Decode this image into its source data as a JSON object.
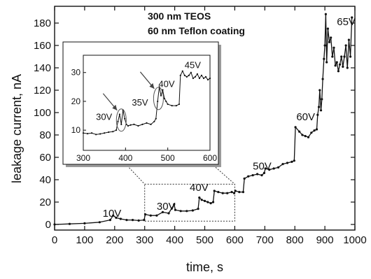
{
  "chart_data": [
    {
      "id": "main",
      "type": "line",
      "xlabel": "time, s",
      "ylabel": "leakage current, nA",
      "xlim": [
        0,
        1000
      ],
      "ylim": [
        -5,
        195
      ],
      "xticks": [
        0,
        100,
        200,
        300,
        400,
        500,
        600,
        700,
        800,
        900,
        1000
      ],
      "yticks": [
        0,
        20,
        40,
        60,
        80,
        100,
        120,
        140,
        160,
        180
      ],
      "annotations": [
        {
          "text": "300 nm TEOS",
          "x": 310,
          "y": 183
        },
        {
          "text": "60 nm Teflon coating",
          "x": 310,
          "y": 170
        }
      ],
      "voltage_labels": [
        {
          "text": "10V",
          "x": 160,
          "y": 7
        },
        {
          "text": "30V",
          "x": 340,
          "y": 13
        },
        {
          "text": "40V",
          "x": 450,
          "y": 30
        },
        {
          "text": "50V",
          "x": 660,
          "y": 49
        },
        {
          "text": "60V",
          "x": 805,
          "y": 93
        },
        {
          "text": "65V",
          "x": 940,
          "y": 178
        }
      ],
      "series": [
        {
          "x": [
            0,
            50,
            100,
            150,
            185,
            195,
            205,
            220,
            240,
            260,
            280,
            298,
            302,
            320,
            340,
            360,
            380,
            398,
            402,
            420,
            440,
            460,
            478,
            482,
            490,
            500,
            510,
            520,
            528,
            532,
            545,
            560,
            575,
            590,
            598,
            602,
            615,
            628,
            632,
            645,
            660,
            675,
            690,
            698,
            702,
            715,
            730,
            745,
            760,
            775,
            790,
            798,
            802,
            815,
            825,
            835,
            845,
            855,
            865,
            873,
            876,
            880,
            883,
            887,
            890,
            893,
            897,
            900,
            903,
            906,
            910,
            915,
            920,
            925,
            930,
            935,
            940,
            945,
            950,
            955,
            960,
            965,
            970,
            975,
            980,
            985,
            990
          ],
          "y": [
            0,
            0.5,
            1,
            2,
            4,
            8,
            6,
            5,
            4,
            4,
            3.5,
            4,
            9,
            8,
            8,
            11,
            10,
            18,
            13,
            12,
            12,
            12.5,
            14,
            24,
            22,
            21,
            20,
            19,
            20,
            30,
            29,
            28,
            28,
            29,
            28,
            30,
            29,
            29,
            41,
            43,
            44,
            45,
            44,
            46,
            50,
            49,
            50,
            51,
            54,
            55,
            56,
            57,
            87,
            83,
            80,
            79,
            78,
            82,
            84,
            85,
            98,
            105,
            120,
            102,
            112,
            130,
            148,
            160,
            188,
            145,
            175,
            163,
            167,
            150,
            158,
            142,
            145,
            137,
            143,
            150,
            141,
            150,
            160,
            140,
            165,
            150,
            185
          ]
        }
      ]
    },
    {
      "id": "inset",
      "type": "line",
      "xlim": [
        300,
        600
      ],
      "ylim": [
        3,
        36
      ],
      "xticks": [
        300,
        400,
        500,
        600
      ],
      "yticks": [
        10,
        20,
        30
      ],
      "voltage_labels": [
        {
          "text": "30V",
          "x": 330,
          "y": 13.5
        },
        {
          "text": "35V",
          "x": 415,
          "y": 18.5
        },
        {
          "text": "40V",
          "x": 478,
          "y": 25
        },
        {
          "text": "45V",
          "x": 540,
          "y": 31.5
        }
      ],
      "series": [
        {
          "x": [
            300,
            310,
            320,
            330,
            340,
            350,
            360,
            370,
            378,
            382,
            386,
            390,
            394,
            398,
            402,
            406,
            412,
            420,
            430,
            440,
            450,
            460,
            468,
            472,
            476,
            480,
            484,
            488,
            492,
            496,
            500,
            510,
            520,
            527,
            530,
            535,
            540,
            545,
            550,
            555,
            560,
            565,
            570,
            575,
            580,
            585,
            590,
            595,
            600
          ],
          "y": [
            9,
            8.8,
            9,
            8.5,
            8.7,
            9,
            9.3,
            9.5,
            10,
            13,
            15.5,
            12,
            17,
            14,
            12,
            11.5,
            11.8,
            12,
            11.5,
            12,
            12.5,
            12,
            13,
            14,
            20,
            25,
            22,
            24,
            21,
            20,
            19,
            18.5,
            18.5,
            19,
            29,
            30.5,
            29,
            28.5,
            29,
            30,
            28,
            28.5,
            29.5,
            28,
            29,
            28,
            28.5,
            27.5,
            28
          ]
        }
      ],
      "highlight_circles_x": [
        390,
        478
      ]
    }
  ]
}
